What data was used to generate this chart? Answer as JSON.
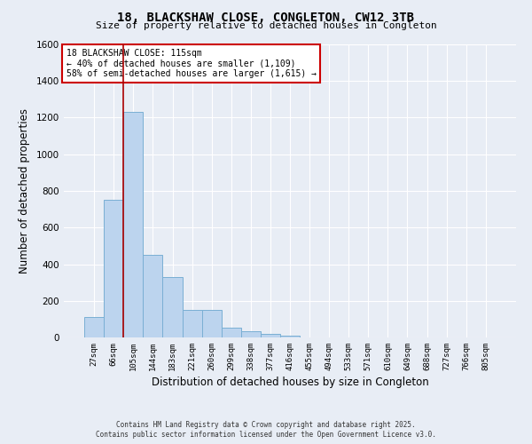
{
  "title_line1": "18, BLACKSHAW CLOSE, CONGLETON, CW12 3TB",
  "title_line2": "Size of property relative to detached houses in Congleton",
  "xlabel": "Distribution of detached houses by size in Congleton",
  "ylabel": "Number of detached properties",
  "footer_line1": "Contains HM Land Registry data © Crown copyright and database right 2025.",
  "footer_line2": "Contains public sector information licensed under the Open Government Licence v3.0.",
  "annotation_line1": "18 BLACKSHAW CLOSE: 115sqm",
  "annotation_line2": "← 40% of detached houses are smaller (1,109)",
  "annotation_line3": "58% of semi-detached houses are larger (1,615) →",
  "categories": [
    "27sqm",
    "66sqm",
    "105sqm",
    "144sqm",
    "183sqm",
    "221sqm",
    "260sqm",
    "299sqm",
    "338sqm",
    "377sqm",
    "416sqm",
    "455sqm",
    "494sqm",
    "533sqm",
    "571sqm",
    "610sqm",
    "649sqm",
    "688sqm",
    "727sqm",
    "766sqm",
    "805sqm"
  ],
  "values": [
    110,
    750,
    1230,
    450,
    330,
    150,
    150,
    55,
    35,
    20,
    10,
    0,
    0,
    0,
    0,
    0,
    0,
    0,
    0,
    0,
    0
  ],
  "bar_color": "#bcd4ee",
  "bar_edgecolor": "#7aafd4",
  "vline_x": 1.5,
  "vline_color": "#aa0000",
  "ylim": [
    0,
    1600
  ],
  "yticks": [
    0,
    200,
    400,
    600,
    800,
    1000,
    1200,
    1400,
    1600
  ],
  "bg_color": "#e8edf5",
  "plot_bg_color": "#e8edf5",
  "grid_color": "#ffffff",
  "annotation_box_edgecolor": "#cc0000",
  "annotation_box_facecolor": "#ffffff"
}
